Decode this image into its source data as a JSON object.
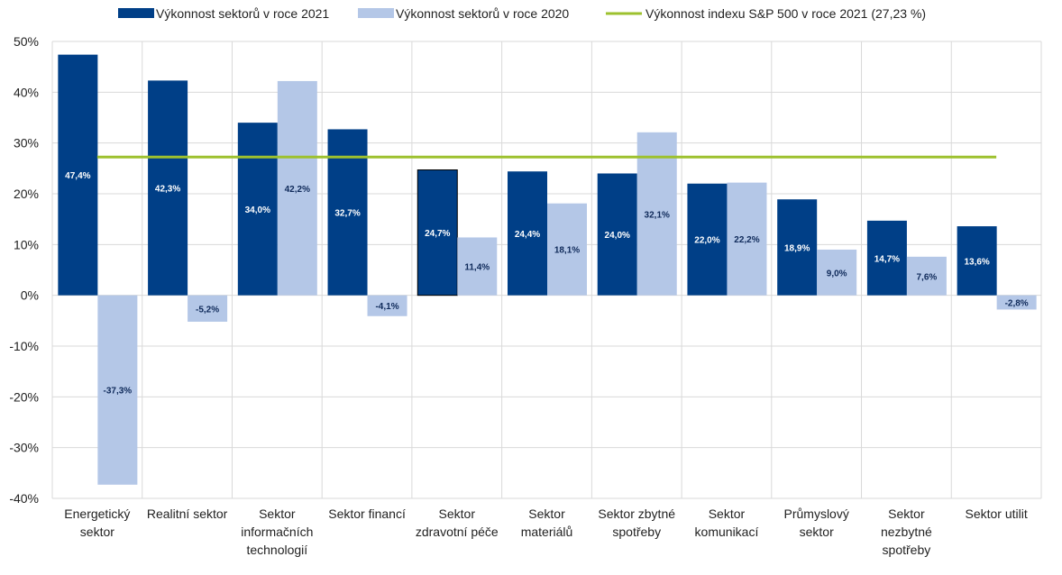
{
  "chart_data": {
    "type": "bar",
    "title": "",
    "xlabel": "",
    "ylabel": "",
    "ylim": [
      -40,
      50
    ],
    "y_ticks": [
      "50%",
      "40%",
      "30%",
      "20%",
      "10%",
      "0%",
      "-10%",
      "-20%",
      "-30%",
      "-40%"
    ],
    "grid": true,
    "legend_position": "top",
    "categories": [
      [
        "Energetický",
        "sektor"
      ],
      [
        "Realitní sektor"
      ],
      [
        "Sektor",
        "informačních",
        "technologií"
      ],
      [
        "Sektor financí"
      ],
      [
        "Sektor",
        "zdravotní péče"
      ],
      [
        "Sektor",
        "materiálů"
      ],
      [
        "Sektor zbytné",
        "spotřeby"
      ],
      [
        "Sektor",
        "komunikací"
      ],
      [
        "Průmyslový",
        "sektor"
      ],
      [
        "Sektor",
        "nezbytné",
        "spotřeby"
      ],
      [
        "Sektor utilit"
      ]
    ],
    "series": [
      {
        "name": "Výkonnost sektorů v roce 2021",
        "color": "#003f87",
        "label_color": "#ffffff",
        "values": [
          47.4,
          42.3,
          34.0,
          32.7,
          24.7,
          24.4,
          24.0,
          22.0,
          18.9,
          14.7,
          13.6
        ],
        "labels": [
          "47,4%",
          "42,3%",
          "34,0%",
          "32,7%",
          "24,7%",
          "24,4%",
          "24,0%",
          "22,0%",
          "18,9%",
          "14,7%",
          "13,6%"
        ]
      },
      {
        "name": "Výkonnost sektorů v roce 2020",
        "color": "#b4c7e7",
        "label_color": "#0f2a5a",
        "values": [
          -37.3,
          -5.2,
          42.2,
          -4.1,
          11.4,
          18.1,
          32.1,
          22.2,
          9.0,
          7.6,
          -2.8
        ],
        "labels": [
          "-37,3%",
          "-5,2%",
          "42,2%",
          "-4,1%",
          "11,4%",
          "18,1%",
          "32,1%",
          "22,2%",
          "9,0%",
          "7,6%",
          "-2,8%"
        ]
      }
    ],
    "reference_line": {
      "name": "Výkonnost indexu S&P 500 v roce 2021 (27,23 %)",
      "value": 27.23,
      "color": "#9dc12e"
    }
  }
}
